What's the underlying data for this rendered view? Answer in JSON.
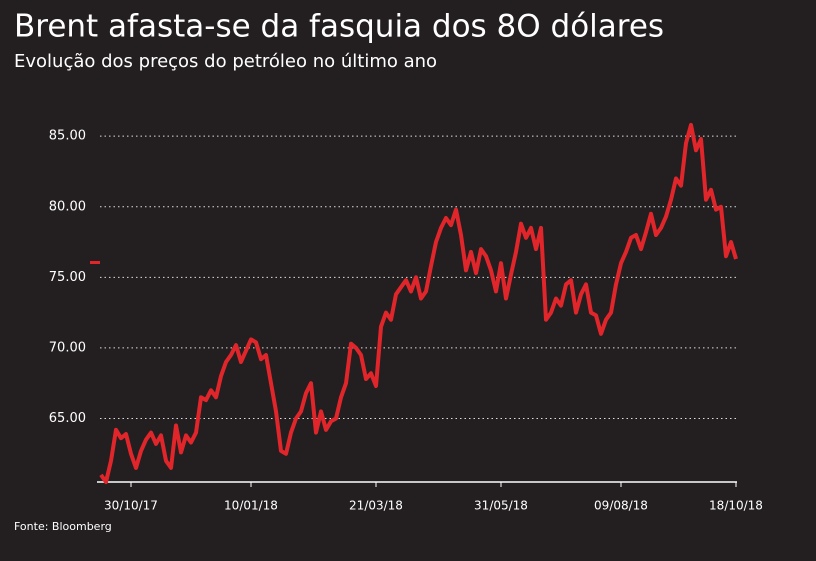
{
  "chart_data": {
    "type": "line",
    "title": "Brent afasta-se da fasquia dos 8O dólares",
    "subtitle": "Evolução dos preços do petróleo no último ano",
    "source": "Fonte: Bloomberg",
    "categories": [
      null,
      null,
      null,
      null,
      null,
      null,
      "30/10/17",
      null,
      null,
      null,
      null,
      null,
      null,
      null,
      null,
      null,
      null,
      null,
      null,
      null,
      null,
      null,
      null,
      null,
      null,
      null,
      null,
      null,
      null,
      null,
      "10/01/18",
      null,
      null,
      null,
      null,
      null,
      null,
      null,
      null,
      null,
      null,
      null,
      null,
      null,
      null,
      null,
      null,
      null,
      null,
      null,
      null,
      null,
      null,
      null,
      null,
      "21/03/18",
      null,
      null,
      null,
      null,
      null,
      null,
      null,
      null,
      null,
      null,
      null,
      null,
      null,
      null,
      null,
      null,
      null,
      null,
      null,
      null,
      null,
      null,
      null,
      null,
      "31/05/18",
      null,
      null,
      null,
      null,
      null,
      null,
      null,
      null,
      null,
      null,
      null,
      null,
      null,
      null,
      null,
      null,
      null,
      null,
      null,
      null,
      null,
      null,
      null,
      "09/08/18",
      null,
      null,
      null,
      null,
      null,
      null,
      null,
      null,
      null,
      null,
      null,
      null,
      null,
      null,
      null,
      null,
      null,
      null,
      null,
      null,
      null,
      null,
      "18/10/18"
    ],
    "series": [
      {
        "name": "Brent",
        "color": "#e0262b",
        "values": [
          61.0,
          60.5,
          62.0,
          64.2,
          63.6,
          63.9,
          62.5,
          61.5,
          62.7,
          63.5,
          64.0,
          63.2,
          63.8,
          62.0,
          61.5,
          64.5,
          62.6,
          63.8,
          63.3,
          64.0,
          66.5,
          66.3,
          67.0,
          66.5,
          68.0,
          69.0,
          69.5,
          70.2,
          69.0,
          69.8,
          70.6,
          70.4,
          69.2,
          69.5,
          67.5,
          65.5,
          62.7,
          62.5,
          64.0,
          65.0,
          65.5,
          66.8,
          67.5,
          64.0,
          65.5,
          64.2,
          64.8,
          65.0,
          66.5,
          67.5,
          70.3,
          70.0,
          69.5,
          67.8,
          68.2,
          67.3,
          71.5,
          72.5,
          72.0,
          73.8,
          74.3,
          74.8,
          74.0,
          75.0,
          73.5,
          74.0,
          75.8,
          77.5,
          78.5,
          79.2,
          78.7,
          79.8,
          78.0,
          75.5,
          76.8,
          75.3,
          77.0,
          76.5,
          75.5,
          74.0,
          76.0,
          73.5,
          75.2,
          76.8,
          78.8,
          77.8,
          78.5,
          77.0,
          78.5,
          72.0,
          72.5,
          73.5,
          73.0,
          74.5,
          74.8,
          72.5,
          73.8,
          74.5,
          72.5,
          72.3,
          71.0,
          72.0,
          72.5,
          74.5,
          76.0,
          76.8,
          77.8,
          78.0,
          77.0,
          78.2,
          79.5,
          78.0,
          78.5,
          79.3,
          80.5,
          82.0,
          81.5,
          84.5,
          85.8,
          84.0,
          84.8,
          80.5,
          81.2,
          79.8,
          80.0,
          76.5,
          77.5,
          76.3
        ]
      }
    ],
    "ylim": [
      60.5,
      86.5
    ],
    "yticks": [
      {
        "value": 65,
        "label": "65.00"
      },
      {
        "value": 70,
        "label": "70.00"
      },
      {
        "value": 75,
        "label": "75.00"
      },
      {
        "value": 80,
        "label": "80.00"
      },
      {
        "value": 85,
        "label": "85.00"
      }
    ],
    "grid": true
  }
}
